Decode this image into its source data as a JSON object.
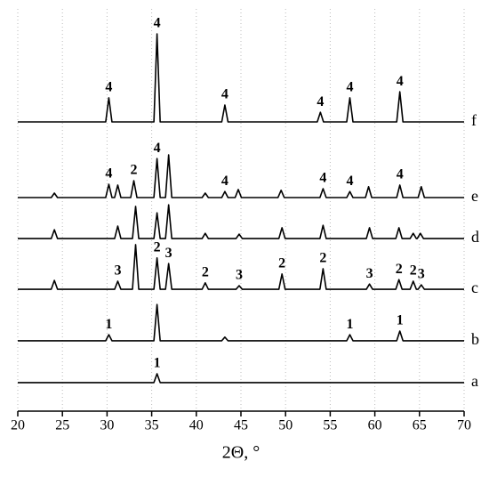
{
  "chart_data": {
    "type": "line",
    "x_label": "2Θ, °",
    "xlim": [
      20,
      70
    ],
    "xticks": [
      20,
      25,
      30,
      35,
      40,
      45,
      50,
      55,
      60,
      65,
      70
    ],
    "ylim": [
      0,
      100
    ],
    "grid": true,
    "series": [
      {
        "name": "a",
        "color": "#000000",
        "x": [
          20,
          35.25,
          35.6,
          35.95,
          70
        ],
        "values": [
          7.1,
          7.1,
          9.3,
          7.1,
          7.1
        ],
        "annotations": [
          {
            "label": "1",
            "x": 35.6
          }
        ]
      },
      {
        "name": "b",
        "color": "#000000",
        "x": [
          20,
          29.85,
          30.2,
          30.55,
          35.25,
          35.6,
          35.95,
          42.85,
          43.2,
          43.55,
          56.85,
          57.2,
          57.55,
          62.45,
          62.8,
          63.15,
          70
        ],
        "values": [
          17.5,
          17.5,
          19.0,
          17.5,
          17.5,
          26.5,
          17.5,
          17.5,
          18.4,
          17.5,
          17.5,
          19.0,
          17.5,
          17.5,
          19.9,
          17.5,
          17.5
        ],
        "annotations": [
          {
            "label": "1",
            "x": 30.2
          },
          {
            "label": "1",
            "x": 57.2
          },
          {
            "label": "1",
            "x": 62.8
          }
        ]
      },
      {
        "name": "c",
        "color": "#000000",
        "x": [
          20,
          23.75,
          24.1,
          24.45,
          30.85,
          31.2,
          31.55,
          32.85,
          33.2,
          33.55,
          35.25,
          35.6,
          35.95,
          36.55,
          36.9,
          37.25,
          40.65,
          41,
          41.35,
          44.45,
          44.8,
          45.15,
          49.25,
          49.6,
          49.95,
          53.85,
          54.2,
          54.55,
          59.05,
          59.4,
          59.75,
          62.35,
          62.7,
          63.05,
          63.95,
          64.3,
          64.65,
          64.85,
          65.2,
          65.55,
          70
        ],
        "values": [
          30.3,
          30.3,
          32.5,
          30.3,
          30.3,
          32.3,
          30.3,
          30.3,
          41.4,
          30.3,
          30.3,
          38.1,
          30.3,
          30.3,
          36.7,
          30.3,
          30.3,
          31.9,
          30.3,
          30.3,
          31.2,
          30.3,
          30.3,
          34.1,
          30.3,
          30.3,
          35.4,
          30.3,
          30.3,
          31.6,
          30.3,
          30.3,
          32.7,
          30.3,
          30.3,
          32.3,
          30.3,
          30.3,
          31.4,
          30.3,
          30.3
        ],
        "annotations": [
          {
            "label": "3",
            "x": 31.2
          },
          {
            "label": "2",
            "x": 35.6
          },
          {
            "label": "3",
            "x": 36.9
          },
          {
            "label": "2",
            "x": 41
          },
          {
            "label": "3",
            "x": 44.8
          },
          {
            "label": "2",
            "x": 49.6
          },
          {
            "label": "2",
            "x": 54.2
          },
          {
            "label": "3",
            "x": 59.4
          },
          {
            "label": "2",
            "x": 62.7
          },
          {
            "label": "2",
            "x": 64.3
          },
          {
            "label": "3",
            "x": 65.2
          }
        ]
      },
      {
        "name": "d",
        "color": "#000000",
        "x": [
          20,
          23.75,
          24.1,
          24.45,
          30.85,
          31.2,
          31.55,
          32.85,
          33.2,
          33.55,
          35.25,
          35.6,
          35.95,
          36.55,
          36.9,
          37.25,
          40.65,
          41,
          41.35,
          44.45,
          44.8,
          45.15,
          49.25,
          49.6,
          49.95,
          53.85,
          54.2,
          54.55,
          59.05,
          59.4,
          59.75,
          62.35,
          62.7,
          63.05,
          63.95,
          64.3,
          64.65,
          64.75,
          65.1,
          65.45,
          70
        ],
        "values": [
          42.9,
          42.9,
          45.1,
          42.9,
          42.9,
          46.0,
          42.9,
          42.9,
          50.9,
          42.9,
          42.9,
          49.3,
          42.9,
          42.9,
          51.3,
          42.9,
          42.9,
          44.2,
          42.9,
          42.9,
          44.0,
          42.9,
          42.9,
          45.6,
          42.9,
          42.9,
          46.2,
          42.9,
          42.9,
          45.6,
          42.9,
          42.9,
          45.6,
          42.9,
          42.9,
          44.2,
          42.9,
          42.9,
          44.2,
          42.9,
          42.9
        ],
        "annotations": []
      },
      {
        "name": "e",
        "color": "#000000",
        "x": [
          20,
          23.75,
          24.1,
          24.45,
          29.85,
          30.2,
          30.55,
          30.85,
          31.2,
          31.55,
          32.65,
          33.0,
          33.35,
          35.25,
          35.6,
          35.95,
          36.55,
          36.9,
          37.25,
          40.65,
          41,
          41.35,
          42.85,
          43.2,
          43.55,
          44.35,
          44.7,
          45.05,
          49.15,
          49.5,
          49.85,
          53.85,
          54.2,
          54.55,
          56.85,
          57.2,
          57.55,
          58.95,
          59.3,
          59.65,
          62.45,
          62.8,
          63.15,
          64.85,
          65.2,
          65.55,
          70
        ],
        "values": [
          53.1,
          53.1,
          54.2,
          53.1,
          53.1,
          56.4,
          53.1,
          53.1,
          56.2,
          53.1,
          53.1,
          57.3,
          53.1,
          53.1,
          62.8,
          53.1,
          53.1,
          63.7,
          53.1,
          53.1,
          54.2,
          53.1,
          53.1,
          54.6,
          53.1,
          53.1,
          55.1,
          53.1,
          53.1,
          54.9,
          53.1,
          53.1,
          55.3,
          53.1,
          53.1,
          54.6,
          53.1,
          53.1,
          55.8,
          53.1,
          53.1,
          56.2,
          53.1,
          53.1,
          55.8,
          53.1,
          53.1
        ],
        "annotations": [
          {
            "label": "4",
            "x": 30.2
          },
          {
            "label": "2",
            "x": 33.0
          },
          {
            "label": "4",
            "x": 35.6
          },
          {
            "label": "4",
            "x": 43.2
          },
          {
            "label": "4",
            "x": 54.2
          },
          {
            "label": "4",
            "x": 57.2
          },
          {
            "label": "4",
            "x": 62.8
          }
        ]
      },
      {
        "name": "f",
        "color": "#000000",
        "x": [
          20,
          29.85,
          30.2,
          30.55,
          35.25,
          35.6,
          35.95,
          42.85,
          43.2,
          43.55,
          53.55,
          53.9,
          54.25,
          56.85,
          57.2,
          57.55,
          62.45,
          62.8,
          63.15,
          70
        ],
        "values": [
          71.9,
          71.9,
          77.9,
          71.9,
          71.9,
          93.8,
          71.9,
          71.9,
          76.1,
          71.9,
          71.9,
          74.3,
          71.9,
          71.9,
          77.9,
          71.9,
          71.9,
          79.4,
          71.9,
          71.9
        ],
        "annotations": [
          {
            "label": "4",
            "x": 30.2
          },
          {
            "label": "4",
            "x": 35.6
          },
          {
            "label": "4",
            "x": 43.2
          },
          {
            "label": "4",
            "x": 53.9
          },
          {
            "label": "4",
            "x": 57.2
          },
          {
            "label": "4",
            "x": 62.8
          }
        ]
      }
    ]
  }
}
